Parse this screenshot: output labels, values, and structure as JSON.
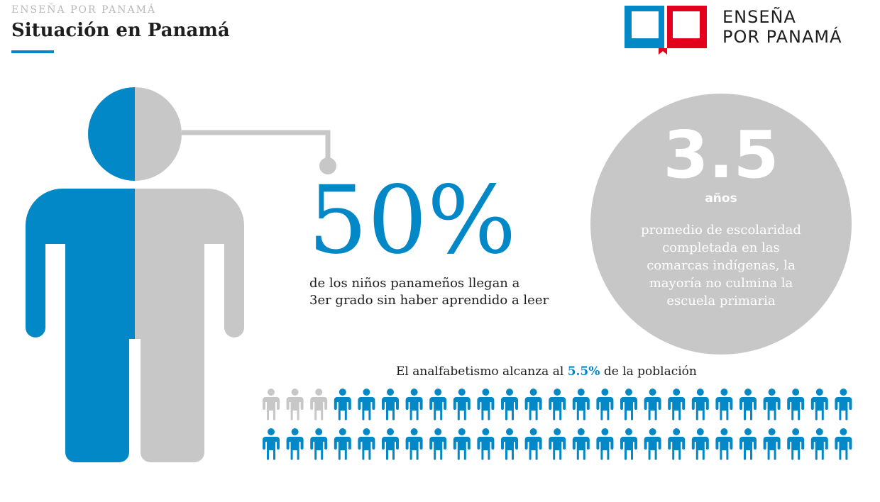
{
  "header": {
    "kicker": "ENSEÑA POR PANAMÁ",
    "title": "Situación en Panamá"
  },
  "logo": {
    "line1": "ENSEÑA",
    "line2": "POR PANAMÁ",
    "icon": "open-book-icon"
  },
  "colors": {
    "blue": "#0288c7",
    "gray": "#c7c7c7",
    "red": "#e3001b",
    "text": "#1e1e1e"
  },
  "stat_reading": {
    "value": "50%",
    "caption_line1": "de los niños panameños llegan a",
    "caption_line2": "3er grado sin haber aprendido a leer",
    "share_blue": 0.5
  },
  "stat_schooling": {
    "value": "3.5",
    "unit": "años",
    "caption_line1": "promedio de escolaridad",
    "caption_line2": "completada en las",
    "caption_line3": "comarcas indígenas, la",
    "caption_line4": "mayoría no culmina la",
    "caption_line5": "escuela primaria"
  },
  "literacy": {
    "label_before": "El analfabetismo alcanza al",
    "highlight": "5.5%",
    "label_after": "de la población",
    "rows": 2,
    "per_row": 25,
    "gray_count": 3
  }
}
